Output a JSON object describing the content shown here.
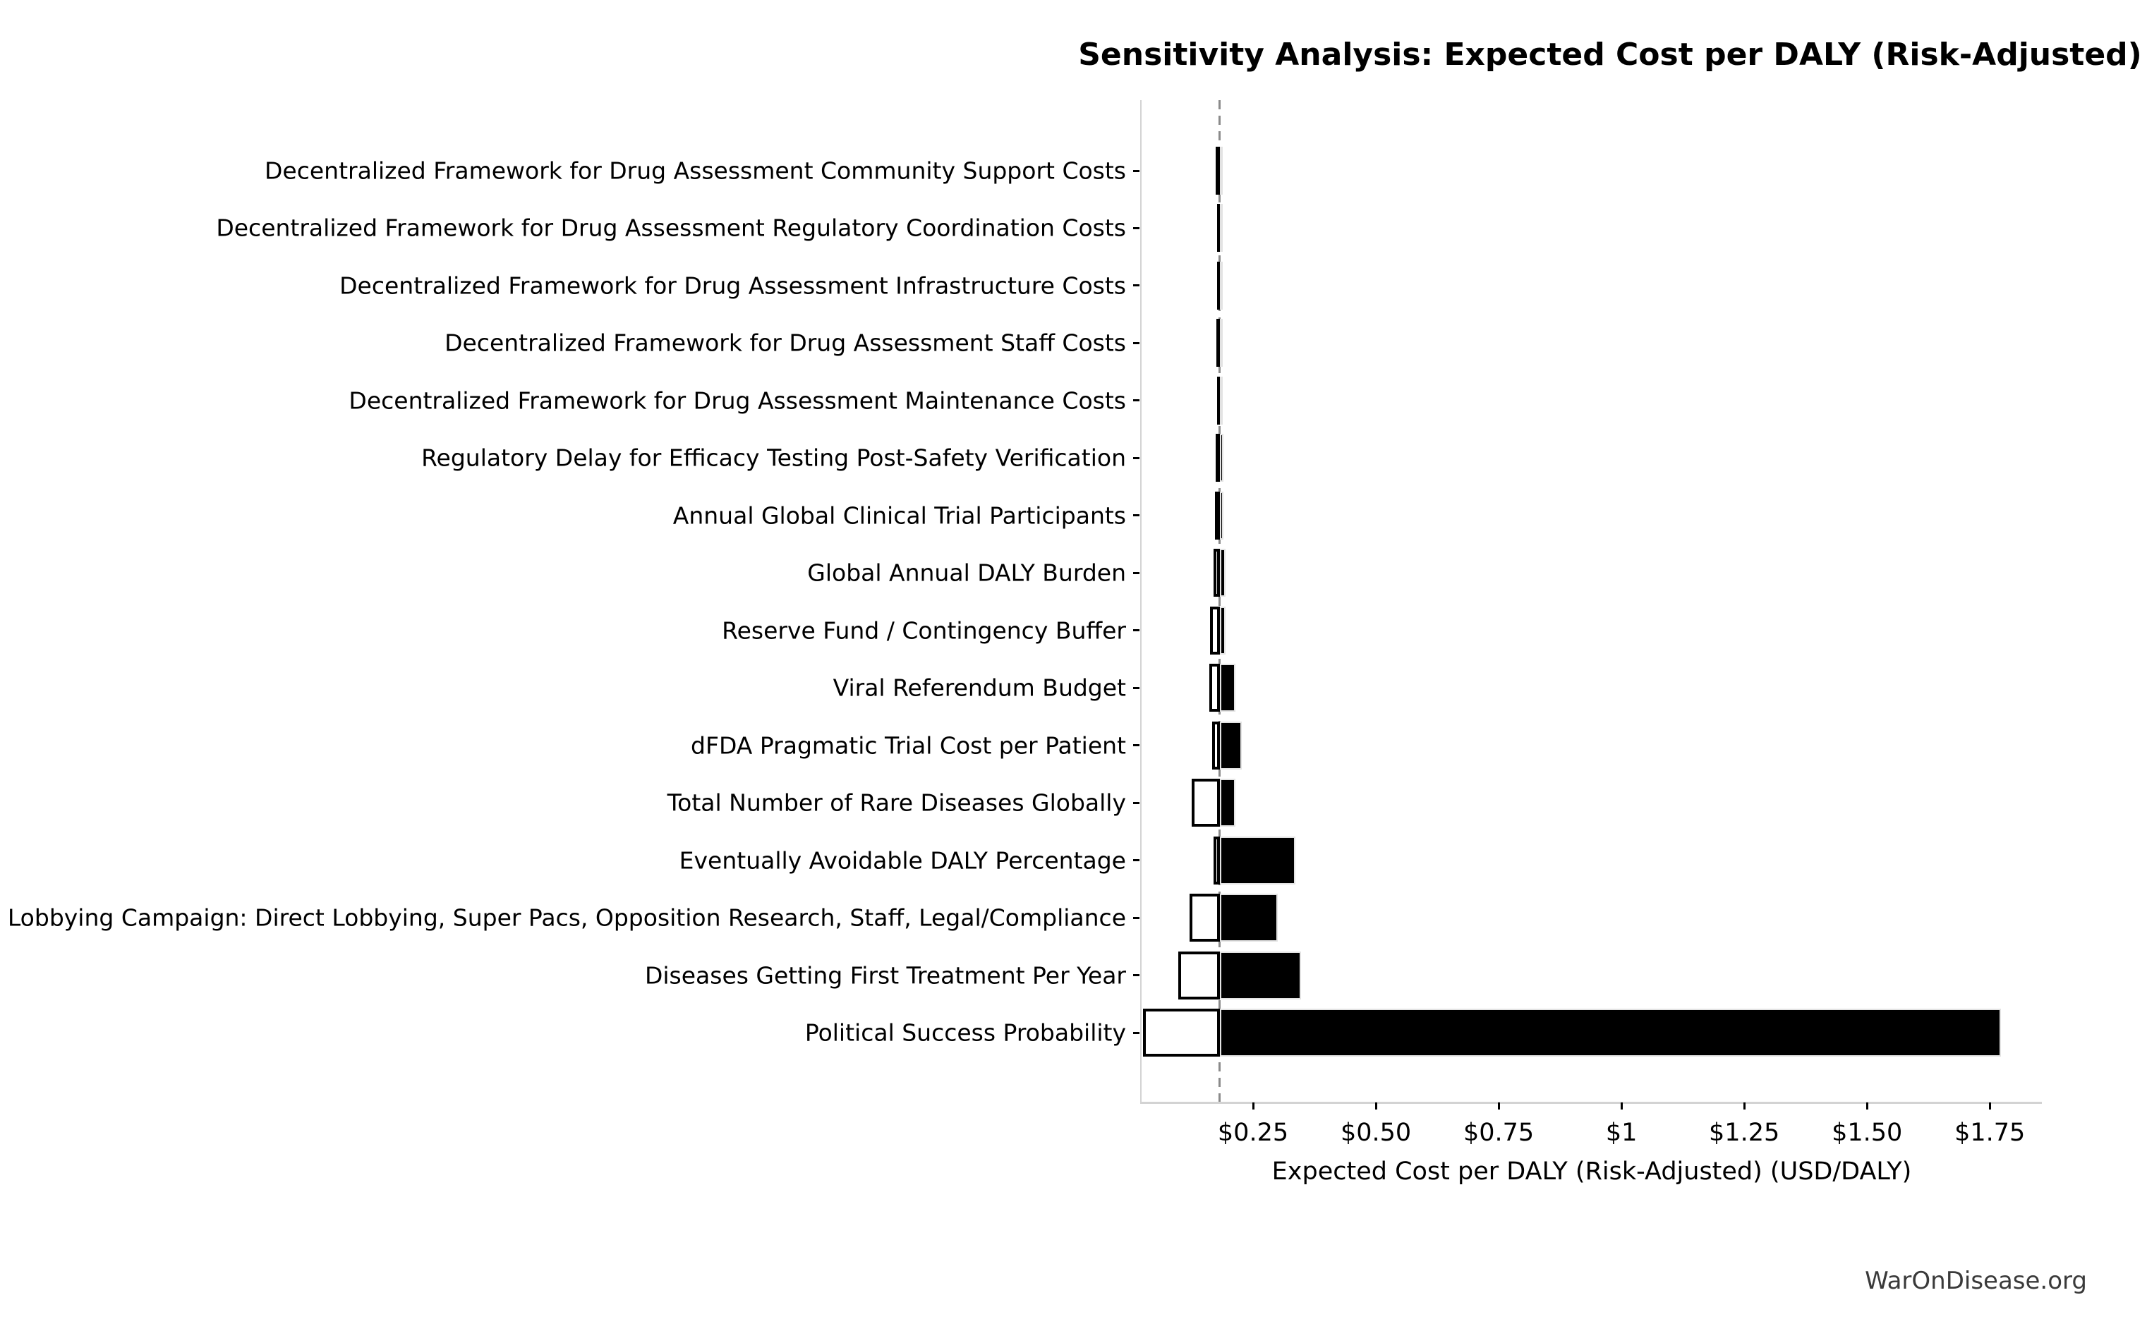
{
  "chart_data": {
    "type": "bar",
    "subtype": "tornado-sensitivity",
    "orientation": "horizontal",
    "title": "Sensitivity Analysis: Expected Cost per DALY (Risk-Adjusted)",
    "xlabel": "Expected Cost per DALY (Risk-Adjusted) (USD/DALY)",
    "baseline_value": 0.182,
    "xlim": [
      0.023,
      1.856
    ],
    "grid": false,
    "legend": "none",
    "xticks": [
      {
        "value": 0.25,
        "label": "$0.25"
      },
      {
        "value": 0.5,
        "label": "$0.50"
      },
      {
        "value": 0.75,
        "label": "$0.75"
      },
      {
        "value": 1.0,
        "label": "$1"
      },
      {
        "value": 1.25,
        "label": "$1.25"
      },
      {
        "value": 1.5,
        "label": "$1.50"
      },
      {
        "value": 1.75,
        "label": "$1.75"
      }
    ],
    "categories": [
      "Decentralized Framework for Drug Assessment Community Support Costs",
      "Decentralized Framework for Drug Assessment Regulatory Coordination Costs",
      "Decentralized Framework for Drug Assessment Infrastructure Costs",
      "Decentralized Framework for Drug Assessment Staff Costs",
      "Decentralized Framework for Drug Assessment Maintenance Costs",
      "Regulatory Delay for Efficacy Testing Post-Safety Verification",
      "Annual Global Clinical Trial Participants",
      "Global Annual DALY Burden",
      "Reserve Fund / Contingency Buffer",
      "Viral Referendum Budget",
      "dFDA Pragmatic Trial Cost per Patient",
      "Total Number of Rare Diseases Globally",
      "Eventually Avoidable DALY Percentage",
      "Political Lobbying Campaign: Direct Lobbying, Super Pacs, Opposition Research, Staff, Legal/Compliance",
      "Diseases Getting First Treatment Per Year",
      "Political Success Probability"
    ],
    "series": [
      {
        "name": "low",
        "values": [
          0.174,
          0.176,
          0.176,
          0.175,
          0.176,
          0.174,
          0.172,
          0.169,
          0.163,
          0.161,
          0.166,
          0.125,
          0.17,
          0.12,
          0.098,
          0.026
        ]
      },
      {
        "name": "high",
        "values": [
          0.186,
          0.187,
          0.187,
          0.187,
          0.187,
          0.189,
          0.19,
          0.194,
          0.194,
          0.214,
          0.227,
          0.214,
          0.336,
          0.3,
          0.348,
          1.772
        ]
      }
    ],
    "colors": {
      "bar_low_fill": "#ffffff",
      "bar_low_edge": "#000000",
      "bar_high_fill": "#000000",
      "bar_high_edge": "#e3e3e3",
      "baseline_line": "#8a8a8a",
      "spine": "#d3d3d3",
      "text": "#000000"
    }
  },
  "footer": {
    "watermark": "WarOnDisease.org"
  }
}
